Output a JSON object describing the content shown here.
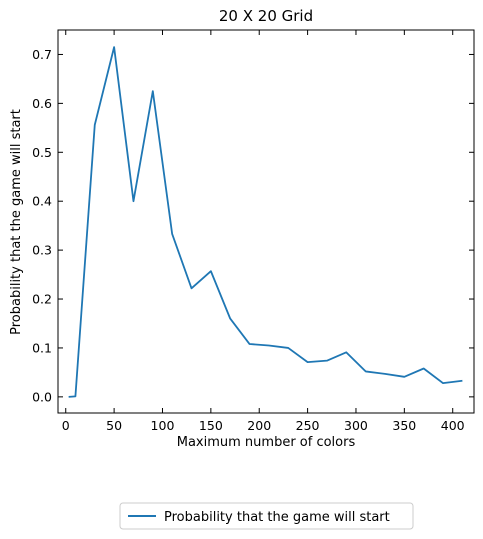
{
  "chart_data": {
    "type": "line",
    "title": "20 X 20 Grid",
    "xlabel": "Maximum number of colors",
    "ylabel": "Probability that the game will start",
    "xlim": [
      -8,
      422
    ],
    "ylim": [
      -0.033,
      0.75
    ],
    "xticks": [
      0,
      50,
      100,
      150,
      200,
      250,
      300,
      350,
      400
    ],
    "yticks": [
      0.0,
      0.1,
      0.2,
      0.3,
      0.4,
      0.5,
      0.6,
      0.7
    ],
    "ytick_labels": [
      "0.0",
      "0.1",
      "0.2",
      "0.3",
      "0.4",
      "0.5",
      "0.6",
      "0.7"
    ],
    "grid": false,
    "legend_position": "bottom-center, below plot",
    "series": [
      {
        "name": "Probability that the game will start",
        "color": "#1f77b4",
        "x": [
          3,
          10,
          30,
          50,
          70,
          90,
          110,
          130,
          150,
          170,
          190,
          210,
          230,
          250,
          270,
          290,
          310,
          330,
          350,
          370,
          390,
          410
        ],
        "values": [
          0.0,
          0.001,
          0.556,
          0.715,
          0.4,
          0.625,
          0.333,
          0.222,
          0.257,
          0.16,
          0.108,
          0.105,
          0.1,
          0.071,
          0.074,
          0.091,
          0.052,
          0.047,
          0.041,
          0.058,
          0.028,
          0.033
        ]
      }
    ],
    "ylabel_color": "#1f77b4"
  }
}
